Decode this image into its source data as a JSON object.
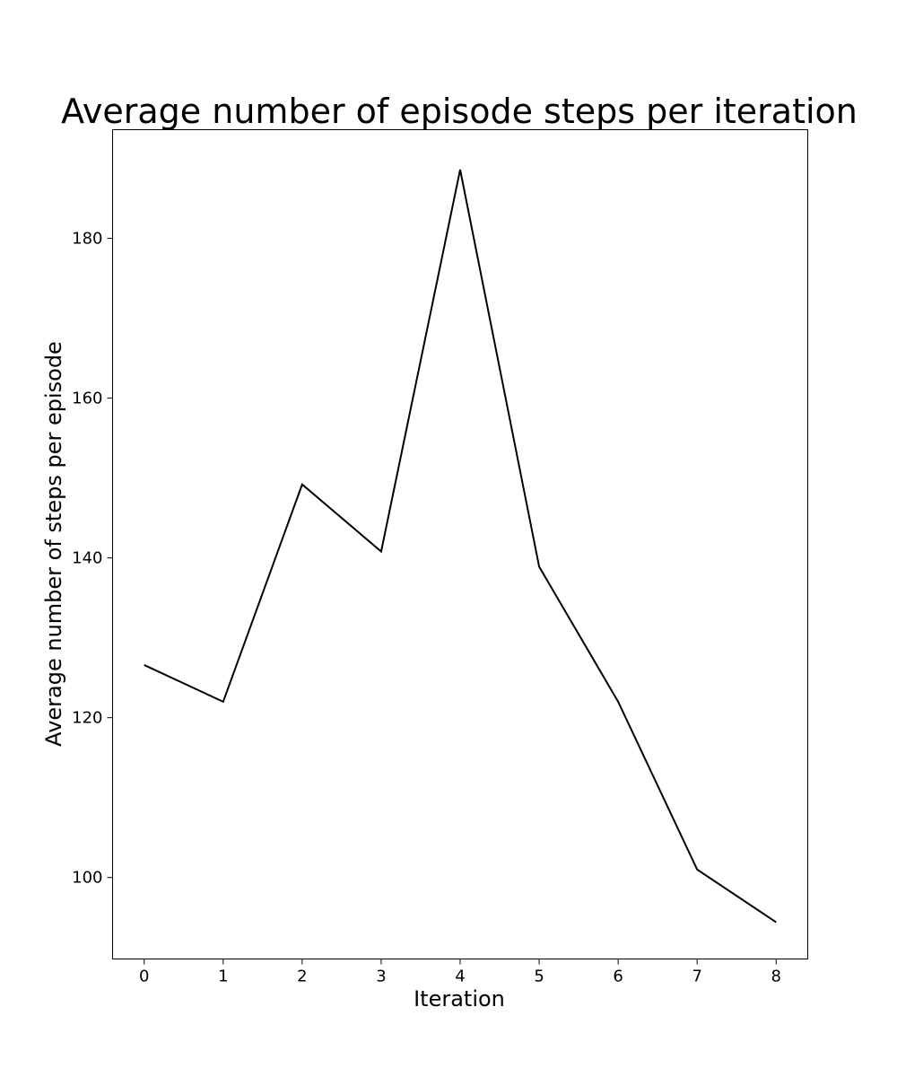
{
  "chart_data": {
    "type": "line",
    "title": "Average number of episode steps per iteration",
    "xlabel": "Iteration",
    "ylabel": "Average number of steps per episode",
    "x": [
      0,
      1,
      2,
      3,
      4,
      5,
      6,
      7,
      8
    ],
    "x_ticks": [
      "0",
      "1",
      "2",
      "3",
      "4",
      "5",
      "6",
      "7",
      "8"
    ],
    "y_ticks": [
      "100",
      "120",
      "140",
      "160",
      "180"
    ],
    "xlim": [
      -0.4,
      8.4
    ],
    "ylim": [
      89.8,
      193.6
    ],
    "series": [
      {
        "values": [
          126.6,
          122.0,
          149.2,
          140.8,
          188.6,
          138.9,
          122.0,
          101.0,
          94.4
        ],
        "color": "#000000"
      }
    ],
    "grid": false,
    "legend": "none"
  }
}
